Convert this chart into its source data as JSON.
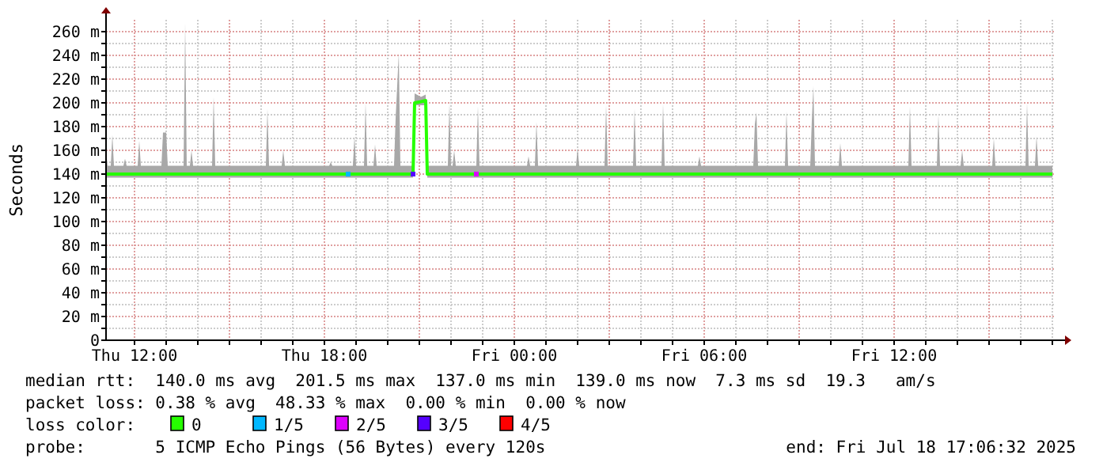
{
  "chart_data": {
    "type": "line",
    "ylabel": "Seconds",
    "ylim": [
      0,
      270
    ],
    "yticks": [
      0,
      {
        "value": 10,
        "label": null
      },
      {
        "value": 20,
        "label": "20 m"
      },
      {
        "value": 30,
        "label": null
      },
      {
        "value": 40,
        "label": "40 m"
      },
      {
        "value": 50,
        "label": null
      },
      {
        "value": 60,
        "label": "60 m"
      },
      {
        "value": 70,
        "label": null
      },
      {
        "value": 80,
        "label": "80 m"
      },
      {
        "value": 90,
        "label": null
      },
      {
        "value": 100,
        "label": "100 m"
      },
      {
        "value": 110,
        "label": null
      },
      {
        "value": 120,
        "label": "120 m"
      },
      {
        "value": 130,
        "label": null
      },
      {
        "value": 140,
        "label": "140 m"
      },
      {
        "value": 150,
        "label": null
      },
      {
        "value": 160,
        "label": "160 m"
      },
      {
        "value": 170,
        "label": null
      },
      {
        "value": 180,
        "label": "180 m"
      },
      {
        "value": 190,
        "label": null
      },
      {
        "value": 200,
        "label": "200 m"
      },
      {
        "value": 210,
        "label": null
      },
      {
        "value": 220,
        "label": "220 m"
      },
      {
        "value": 230,
        "label": null
      },
      {
        "value": 240,
        "label": "240 m"
      },
      {
        "value": 250,
        "label": null
      },
      {
        "value": 260,
        "label": "260 m"
      }
    ],
    "xlim": [
      "2025-07-17T11:06",
      "2025-07-18T17:06"
    ],
    "xticks": [
      {
        "value": "2025-07-17T12:00",
        "label": "Thu 12:00"
      },
      {
        "value": "2025-07-17T13:00",
        "label": null
      },
      {
        "value": "2025-07-17T14:00",
        "label": null
      },
      {
        "value": "2025-07-17T15:00",
        "label": null
      },
      {
        "value": "2025-07-17T16:00",
        "label": null
      },
      {
        "value": "2025-07-17T17:00",
        "label": null
      },
      {
        "value": "2025-07-17T18:00",
        "label": "Thu 18:00"
      },
      {
        "value": "2025-07-17T19:00",
        "label": null
      },
      {
        "value": "2025-07-17T20:00",
        "label": null
      },
      {
        "value": "2025-07-17T21:00",
        "label": null
      },
      {
        "value": "2025-07-17T22:00",
        "label": null
      },
      {
        "value": "2025-07-17T23:00",
        "label": null
      },
      {
        "value": "2025-07-18T00:00",
        "label": "Fri 00:00"
      },
      {
        "value": "2025-07-18T01:00",
        "label": null
      },
      {
        "value": "2025-07-18T02:00",
        "label": null
      },
      {
        "value": "2025-07-18T03:00",
        "label": null
      },
      {
        "value": "2025-07-18T04:00",
        "label": null
      },
      {
        "value": "2025-07-18T05:00",
        "label": null
      },
      {
        "value": "2025-07-18T06:00",
        "label": "Fri 06:00"
      },
      {
        "value": "2025-07-18T07:00",
        "label": null
      },
      {
        "value": "2025-07-18T08:00",
        "label": null
      },
      {
        "value": "2025-07-18T09:00",
        "label": null
      },
      {
        "value": "2025-07-18T10:00",
        "label": null
      },
      {
        "value": "2025-07-18T11:00",
        "label": null
      },
      {
        "value": "2025-07-18T12:00",
        "label": "Fri 12:00"
      },
      {
        "value": "2025-07-18T13:00",
        "label": null
      },
      {
        "value": "2025-07-18T14:00",
        "label": null
      },
      {
        "value": "2025-07-18T15:00",
        "label": null
      },
      {
        "value": "2025-07-18T16:00",
        "label": null
      },
      {
        "value": "2025-07-18T17:00",
        "label": null
      }
    ],
    "grid": true,
    "legend": "bottom",
    "legend_title": "loss color:",
    "line_style": "solid",
    "series": [
      {
        "name": "0",
        "color": "#26ff00",
        "x": [
          "2025-07-17T11:06",
          "2025-07-17T11:09",
          "2025-07-17T11:15",
          "2025-07-17T11:18",
          "2025-07-17T11:21",
          "2025-07-17T11:39",
          "2025-07-17T11:42",
          "2025-07-17T11:45",
          "2025-07-17T12:06",
          "2025-07-17T12:09",
          "2025-07-17T12:12",
          "2025-07-17T12:51",
          "2025-07-17T12:54",
          "2025-07-17T13:00",
          "2025-07-17T13:03",
          "2025-07-17T13:33",
          "2025-07-17T13:36",
          "2025-07-17T13:39",
          "2025-07-17T13:45",
          "2025-07-17T13:48",
          "2025-07-17T13:51",
          "2025-07-17T14:27",
          "2025-07-17T14:30",
          "2025-07-17T14:33",
          "2025-07-17T16:09",
          "2025-07-17T16:12",
          "2025-07-17T16:15",
          "2025-07-17T16:39",
          "2025-07-17T16:42",
          "2025-07-17T16:45",
          "2025-07-17T18:09",
          "2025-07-17T18:12",
          "2025-07-17T18:15",
          "2025-07-17T18:54",
          "2025-07-17T18:57",
          "2025-07-17T19:00",
          "2025-07-17T19:15",
          "2025-07-17T19:18",
          "2025-07-17T19:21",
          "2025-07-17T19:33",
          "2025-07-17T19:36",
          "2025-07-17T19:39",
          "2025-07-17T20:12",
          "2025-07-17T20:15",
          "2025-07-17T20:21",
          "2025-07-17T20:24",
          "2025-07-17T20:48",
          "2025-07-17T20:51",
          "2025-07-17T21:03",
          "2025-07-17T21:12",
          "2025-07-17T21:15",
          "2025-07-17T21:54",
          "2025-07-17T21:57",
          "2025-07-17T22:00",
          "2025-07-17T22:03",
          "2025-07-17T22:06",
          "2025-07-17T22:09",
          "2025-07-17T22:48",
          "2025-07-17T22:51",
          "2025-07-17T22:54",
          "2025-07-18T00:24",
          "2025-07-18T00:27",
          "2025-07-18T00:30",
          "2025-07-18T00:39",
          "2025-07-18T00:42",
          "2025-07-18T00:45",
          "2025-07-18T01:57",
          "2025-07-18T02:00",
          "2025-07-18T02:03",
          "2025-07-18T02:51",
          "2025-07-18T02:54",
          "2025-07-18T02:57",
          "2025-07-18T03:45",
          "2025-07-18T03:48",
          "2025-07-18T03:51",
          "2025-07-18T04:39",
          "2025-07-18T04:42",
          "2025-07-18T04:45",
          "2025-07-18T05:48",
          "2025-07-18T05:51",
          "2025-07-18T05:54",
          "2025-07-18T07:33",
          "2025-07-18T07:36",
          "2025-07-18T07:39",
          "2025-07-18T07:42",
          "2025-07-18T08:33",
          "2025-07-18T08:36",
          "2025-07-18T08:39",
          "2025-07-18T09:21",
          "2025-07-18T09:24",
          "2025-07-18T09:27",
          "2025-07-18T09:30",
          "2025-07-18T10:15",
          "2025-07-18T10:18",
          "2025-07-18T10:21",
          "2025-07-18T12:27",
          "2025-07-18T12:30",
          "2025-07-18T12:33",
          "2025-07-18T13:21",
          "2025-07-18T13:24",
          "2025-07-18T13:27",
          "2025-07-18T14:06",
          "2025-07-18T14:09",
          "2025-07-18T14:12",
          "2025-07-18T15:06",
          "2025-07-18T15:09",
          "2025-07-18T15:12",
          "2025-07-18T16:09",
          "2025-07-18T16:12",
          "2025-07-18T16:15",
          "2025-07-18T16:27",
          "2025-07-18T16:30",
          "2025-07-18T16:33",
          "2025-07-18T17:00"
        ],
        "values": [
          140,
          140,
          140,
          140,
          140,
          140,
          140,
          140,
          140,
          140,
          140,
          140,
          140,
          140,
          140,
          140,
          140,
          140,
          140,
          140,
          140,
          140,
          140,
          140,
          140,
          140,
          140,
          140,
          140,
          140,
          140,
          140,
          140,
          140,
          140,
          140,
          140,
          140,
          140,
          140,
          140,
          140,
          140,
          140,
          140,
          140,
          140,
          200,
          201,
          202,
          140,
          140,
          140,
          140,
          140,
          140,
          140,
          140,
          140,
          140,
          140,
          140,
          140,
          140,
          140,
          140,
          140,
          140,
          140,
          140,
          140,
          140,
          140,
          140,
          140,
          140,
          140,
          140,
          140,
          140,
          140,
          140,
          140,
          140,
          140,
          140,
          140,
          140,
          140,
          140,
          140,
          140,
          140,
          140,
          140,
          140,
          140,
          140,
          140,
          140,
          140,
          140,
          140,
          140,
          140,
          140,
          140,
          140,
          140,
          140,
          140,
          140,
          140,
          140
        ],
        "lower": [
          137,
          137,
          137,
          137,
          137,
          137,
          137,
          137,
          137,
          137,
          137,
          137,
          137,
          137,
          137,
          137,
          137,
          137,
          137,
          137,
          137,
          137,
          137,
          137,
          137,
          137,
          137,
          137,
          137,
          137,
          137,
          137,
          137,
          137,
          137,
          137,
          137,
          137,
          137,
          137,
          137,
          137,
          137,
          137,
          137,
          137,
          137,
          198,
          198,
          198,
          137,
          137,
          137,
          137,
          137,
          137,
          137,
          137,
          137,
          137,
          137,
          137,
          137,
          137,
          137,
          137,
          137,
          137,
          137,
          137,
          137,
          137,
          137,
          137,
          137,
          137,
          137,
          137,
          137,
          137,
          137,
          137,
          137,
          137,
          137,
          137,
          137,
          137,
          137,
          137,
          137,
          137,
          137,
          137,
          137,
          137,
          137,
          137,
          137,
          137,
          137,
          137,
          137,
          137,
          137,
          137,
          137,
          137,
          137,
          137,
          137,
          137,
          137,
          137
        ],
        "upper": [
          160,
          147,
          147,
          173,
          147,
          147,
          153,
          147,
          147,
          168,
          147,
          147,
          175,
          175,
          147,
          147,
          267,
          147,
          147,
          160,
          147,
          147,
          205,
          147,
          147,
          195,
          147,
          147,
          160,
          147,
          147,
          150,
          147,
          147,
          172,
          147,
          147,
          200,
          147,
          147,
          165,
          147,
          147,
          187,
          242,
          147,
          147,
          208,
          205,
          207,
          147,
          147,
          200,
          147,
          147,
          160,
          147,
          147,
          197,
          147,
          147,
          155,
          147,
          147,
          184,
          147,
          147,
          162,
          147,
          147,
          198,
          147,
          147,
          195,
          147,
          147,
          199,
          147,
          147,
          155,
          147,
          147,
          182,
          192,
          147,
          147,
          193,
          147,
          147,
          185,
          214,
          147,
          147,
          166,
          147,
          147,
          197,
          147,
          147,
          190,
          147,
          147,
          160,
          147,
          147,
          170,
          147,
          147,
          200,
          147,
          147,
          172,
          147,
          147
        ]
      },
      {
        "name": "1/5",
        "type": "scatter",
        "marker": "square",
        "color": "#00b8ff",
        "x": [
          "2025-07-17T18:45"
        ],
        "values": [
          140
        ]
      },
      {
        "name": "2/5",
        "type": "scatter",
        "marker": "square",
        "color": "#dd00ff",
        "x": [
          "2025-07-17T22:48"
        ],
        "values": [
          140
        ]
      },
      {
        "name": "3/5",
        "type": "scatter",
        "marker": "square",
        "color": "#5500ff",
        "x": [
          "2025-07-17T20:48"
        ],
        "values": [
          140
        ]
      },
      {
        "name": "4/5",
        "color": "#ff0000"
      }
    ],
    "annotations": [
      "median rtt:  140.0 ms avg  201.5 ms max  137.0 ms min  139.0 ms now  7.3 ms sd  19.3   am/s",
      "packet loss: 0.38 % avg  48.33 % max  0.00 % min  0.00 % now",
      "probe:       5 ICMP Echo Pings (56 Bytes) every 120s",
      "end: Fri Jul 18 17:06:32 2025"
    ]
  }
}
